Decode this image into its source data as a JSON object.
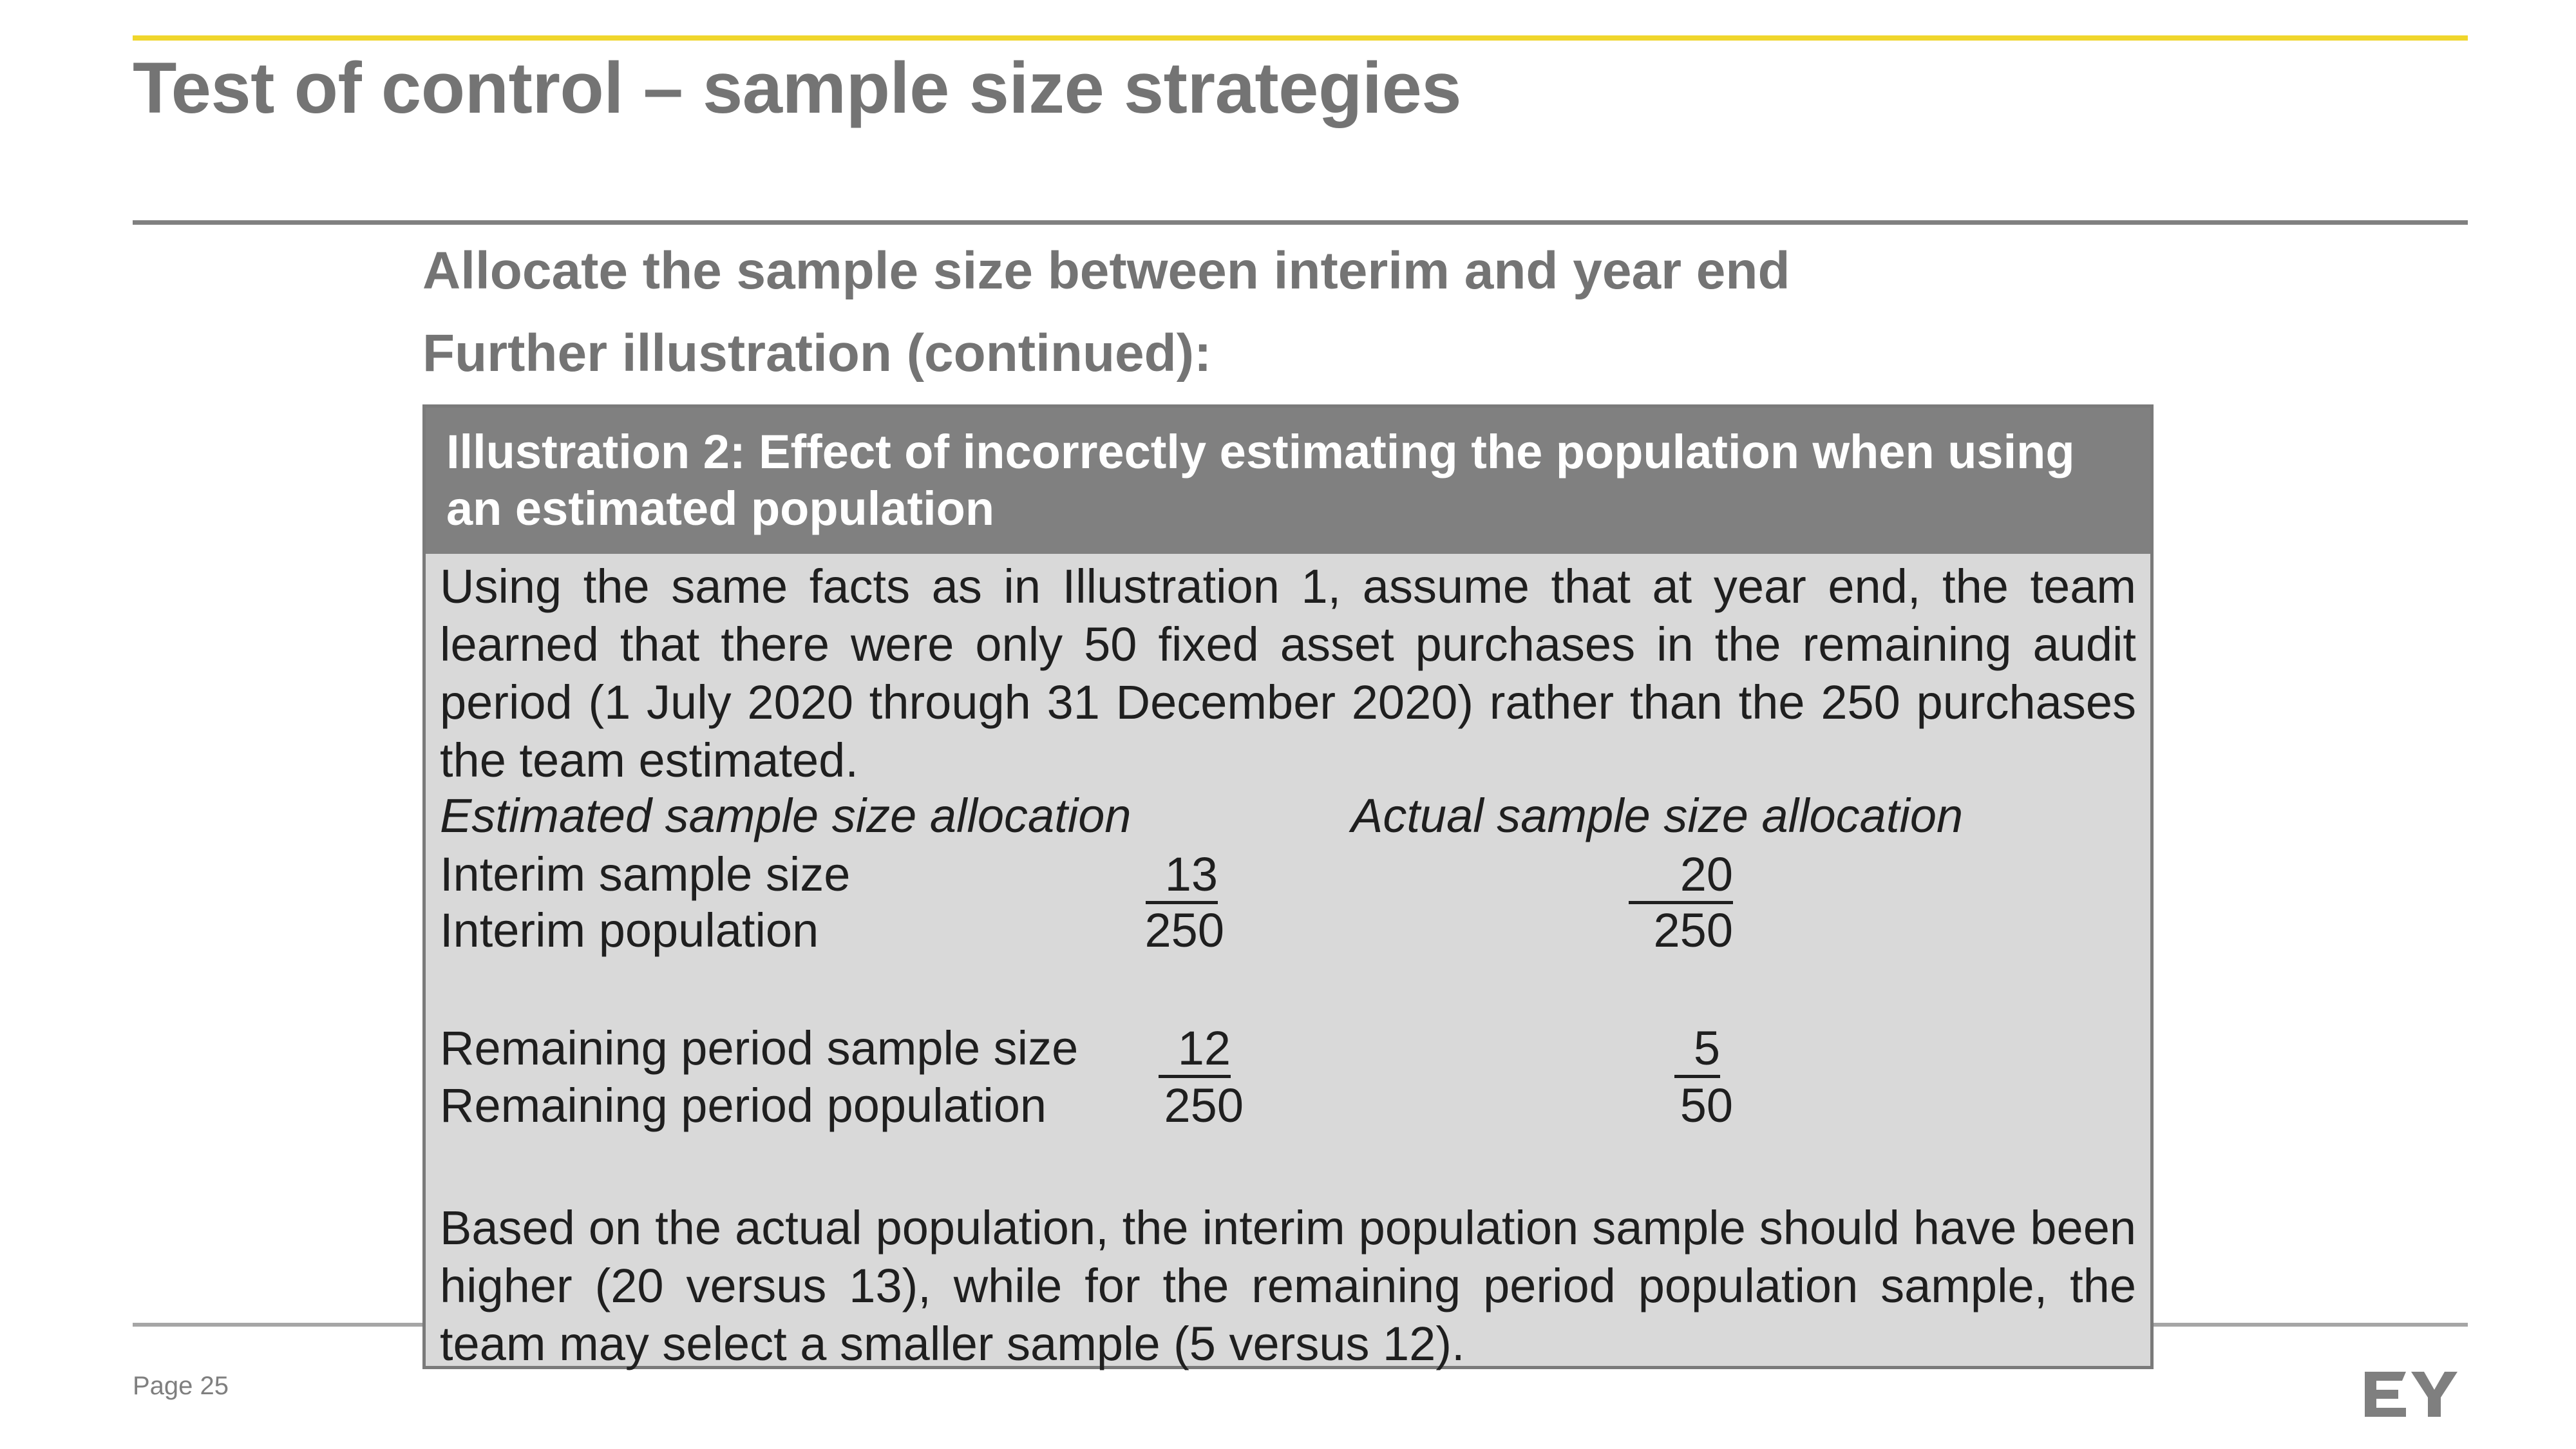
{
  "title": "Test of control – sample size strategies",
  "subheadings": [
    "Allocate the sample size between interim and year end",
    "Further illustration (continued):"
  ],
  "illustration": {
    "header": "Illustration 2: Effect of incorrectly estimating the population when using an estimated population",
    "intro": "Using the same facts as in Illustration 1, assume that at year end, the team learned that there were only 50 fixed asset purchases in the remaining audit period (1 July 2020 through 31 December 2020) rather than the 250 purchases the team estimated.",
    "estimated_heading": "Estimated sample size allocation",
    "actual_heading": "Actual sample size allocation",
    "rows": [
      {
        "label": "Interim sample size",
        "estimated": "13",
        "actual": "20"
      },
      {
        "label": "Interim population",
        "estimated": "250",
        "actual": "250"
      },
      {
        "label": "Remaining period sample size",
        "estimated": "12",
        "actual": "5"
      },
      {
        "label": "Remaining period population",
        "estimated": "250",
        "actual": "50"
      }
    ],
    "conclusion": "Based on the actual population, the interim population sample should have been higher (20 versus 13), while for the remaining period population sample, the team may select a smaller sample (5 versus 12)."
  },
  "footer": {
    "page_label": "Page 25",
    "logo_text": "EY"
  },
  "colors": {
    "accent_yellow": "#f0d62c",
    "title_gray": "#747474",
    "box_header": "#808080",
    "box_body": "#d9d9d9"
  }
}
